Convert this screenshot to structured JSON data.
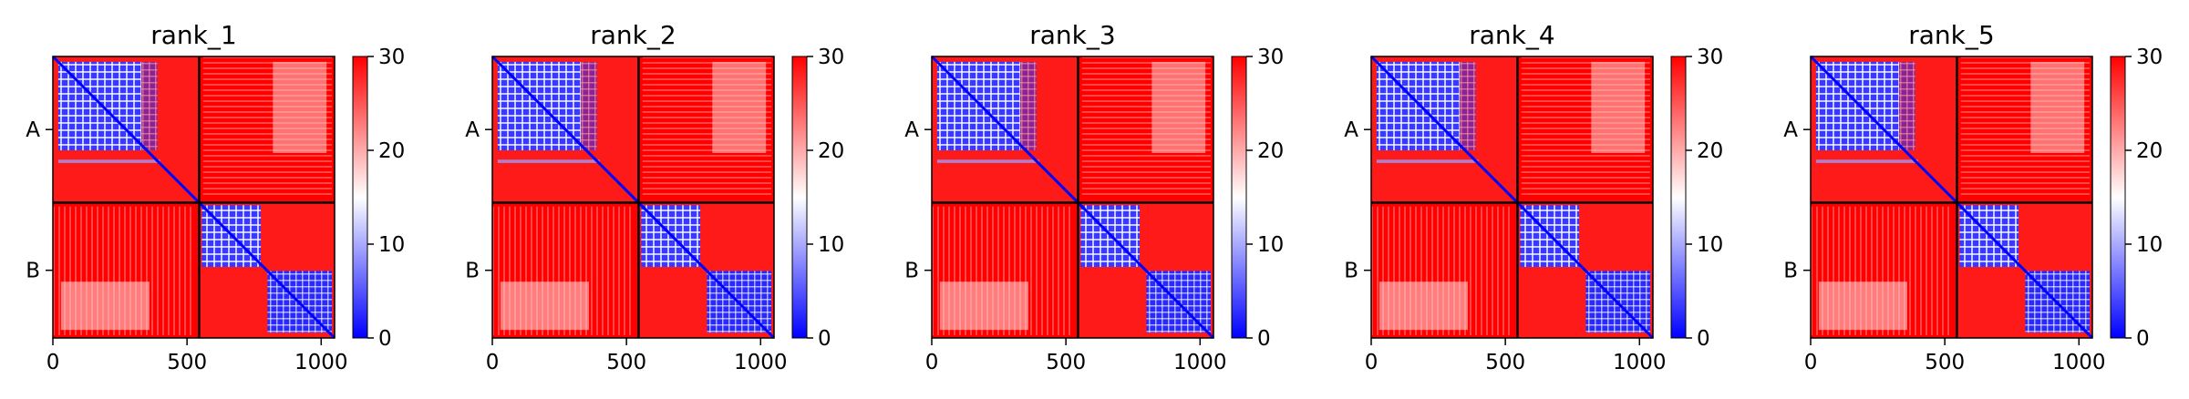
{
  "chart_data": {
    "type": "heatmap",
    "description_note": "",
    "colorbar": {
      "min": 0,
      "max": 30,
      "ticks": [
        0,
        10,
        20,
        30
      ],
      "colors": {
        "low": "#0000ff",
        "mid": "#ffffff",
        "high": "#ff0000"
      }
    },
    "x_ticks": [
      0,
      500,
      1000
    ],
    "x_range": [
      0,
      1050
    ],
    "chain_labels": [
      "A",
      "B"
    ],
    "chain_boundary": 545,
    "panels": [
      {
        "title": "rank_1"
      },
      {
        "title": "rank_2"
      },
      {
        "title": "rank_3"
      },
      {
        "title": "rank_4"
      },
      {
        "title": "rank_5"
      }
    ]
  }
}
